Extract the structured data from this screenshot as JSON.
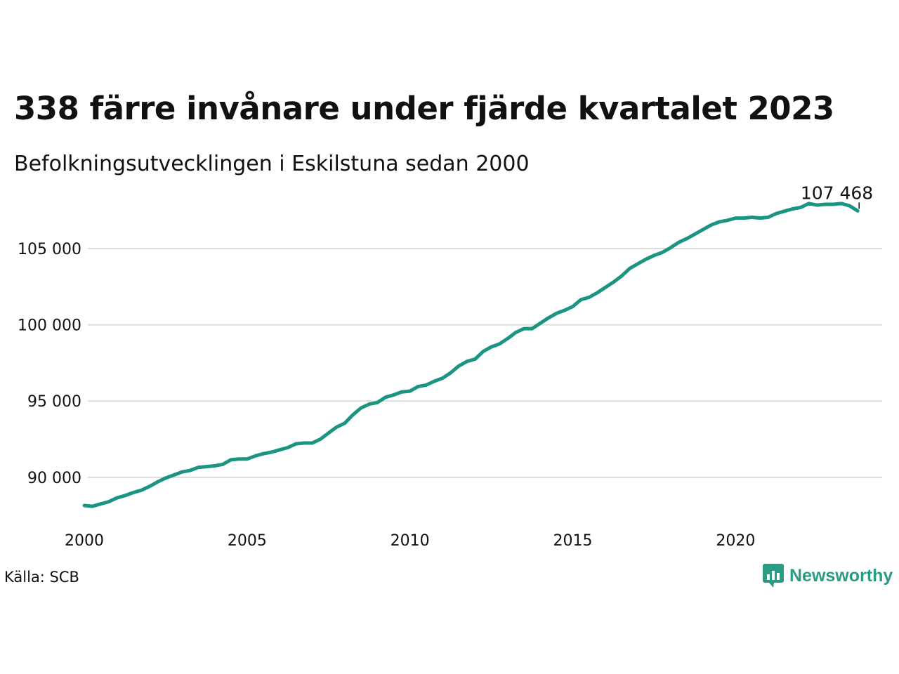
{
  "title": "338 färre invånare under fjärde kvartalet 2023",
  "subtitle": "Befolkningsutvecklingen i Eskilstuna sedan 2000",
  "source": "Källa: SCB",
  "brand": {
    "name": "Newsworthy",
    "icon": "newsworthy-logo-icon",
    "color": "#2b9c84"
  },
  "colors": {
    "line": "#1b9582",
    "grid": "#dddddd",
    "text": "#111111"
  },
  "chart_data": {
    "type": "line",
    "xlabel": "",
    "ylabel": "",
    "xlim": [
      2000,
      2024.5
    ],
    "ylim": [
      87000,
      108500
    ],
    "x_ticks": [
      {
        "value": 2000,
        "label": "2000"
      },
      {
        "value": 2005,
        "label": "2005"
      },
      {
        "value": 2010,
        "label": "2010"
      },
      {
        "value": 2015,
        "label": "2015"
      },
      {
        "value": 2020,
        "label": "2020"
      }
    ],
    "y_ticks": [
      {
        "value": 90000,
        "label": "90 000"
      },
      {
        "value": 95000,
        "label": "95 000"
      },
      {
        "value": 100000,
        "label": "100 000"
      },
      {
        "value": 105000,
        "label": "105 000"
      }
    ],
    "grid": "horizontal",
    "end_label": {
      "x": 2023.75,
      "y": 107468,
      "text": "107 468"
    },
    "series": [
      {
        "points": [
          [
            2000.0,
            88150
          ],
          [
            2000.25,
            88100
          ],
          [
            2000.5,
            88250
          ],
          [
            2000.75,
            88400
          ],
          [
            2001.0,
            88650
          ],
          [
            2001.25,
            88800
          ],
          [
            2001.5,
            89000
          ],
          [
            2001.75,
            89150
          ],
          [
            2002.0,
            89400
          ],
          [
            2002.25,
            89700
          ],
          [
            2002.5,
            89950
          ],
          [
            2002.75,
            90150
          ],
          [
            2003.0,
            90350
          ],
          [
            2003.25,
            90450
          ],
          [
            2003.5,
            90650
          ],
          [
            2003.75,
            90700
          ],
          [
            2004.0,
            90750
          ],
          [
            2004.25,
            90850
          ],
          [
            2004.5,
            91150
          ],
          [
            2004.75,
            91200
          ],
          [
            2005.0,
            91200
          ],
          [
            2005.25,
            91400
          ],
          [
            2005.5,
            91550
          ],
          [
            2005.75,
            91650
          ],
          [
            2006.0,
            91800
          ],
          [
            2006.25,
            91950
          ],
          [
            2006.5,
            92200
          ],
          [
            2006.75,
            92250
          ],
          [
            2007.0,
            92250
          ],
          [
            2007.25,
            92500
          ],
          [
            2007.5,
            92900
          ],
          [
            2007.75,
            93300
          ],
          [
            2008.0,
            93550
          ],
          [
            2008.25,
            94100
          ],
          [
            2008.5,
            94550
          ],
          [
            2008.75,
            94800
          ],
          [
            2009.0,
            94900
          ],
          [
            2009.25,
            95250
          ],
          [
            2009.5,
            95400
          ],
          [
            2009.75,
            95600
          ],
          [
            2010.0,
            95650
          ],
          [
            2010.25,
            95950
          ],
          [
            2010.5,
            96050
          ],
          [
            2010.75,
            96300
          ],
          [
            2011.0,
            96500
          ],
          [
            2011.25,
            96850
          ],
          [
            2011.5,
            97300
          ],
          [
            2011.75,
            97600
          ],
          [
            2012.0,
            97750
          ],
          [
            2012.25,
            98250
          ],
          [
            2012.5,
            98550
          ],
          [
            2012.75,
            98750
          ],
          [
            2013.0,
            99100
          ],
          [
            2013.25,
            99500
          ],
          [
            2013.5,
            99750
          ],
          [
            2013.75,
            99750
          ],
          [
            2014.0,
            100100
          ],
          [
            2014.25,
            100450
          ],
          [
            2014.5,
            100750
          ],
          [
            2014.75,
            100950
          ],
          [
            2015.0,
            101200
          ],
          [
            2015.25,
            101650
          ],
          [
            2015.5,
            101800
          ],
          [
            2015.75,
            102100
          ],
          [
            2016.0,
            102450
          ],
          [
            2016.25,
            102800
          ],
          [
            2016.5,
            103200
          ],
          [
            2016.75,
            103700
          ],
          [
            2017.0,
            104000
          ],
          [
            2017.25,
            104300
          ],
          [
            2017.5,
            104550
          ],
          [
            2017.75,
            104750
          ],
          [
            2018.0,
            105050
          ],
          [
            2018.25,
            105400
          ],
          [
            2018.5,
            105650
          ],
          [
            2018.75,
            105950
          ],
          [
            2019.0,
            106250
          ],
          [
            2019.25,
            106550
          ],
          [
            2019.5,
            106750
          ],
          [
            2019.75,
            106850
          ],
          [
            2020.0,
            107000
          ],
          [
            2020.25,
            107000
          ],
          [
            2020.5,
            107050
          ],
          [
            2020.75,
            107000
          ],
          [
            2021.0,
            107050
          ],
          [
            2021.25,
            107300
          ],
          [
            2021.5,
            107450
          ],
          [
            2021.75,
            107600
          ],
          [
            2022.0,
            107700
          ],
          [
            2022.25,
            107950
          ],
          [
            2022.5,
            107850
          ],
          [
            2022.75,
            107900
          ],
          [
            2023.0,
            107900
          ],
          [
            2023.25,
            107950
          ],
          [
            2023.5,
            107806
          ],
          [
            2023.75,
            107468
          ]
        ]
      }
    ]
  }
}
